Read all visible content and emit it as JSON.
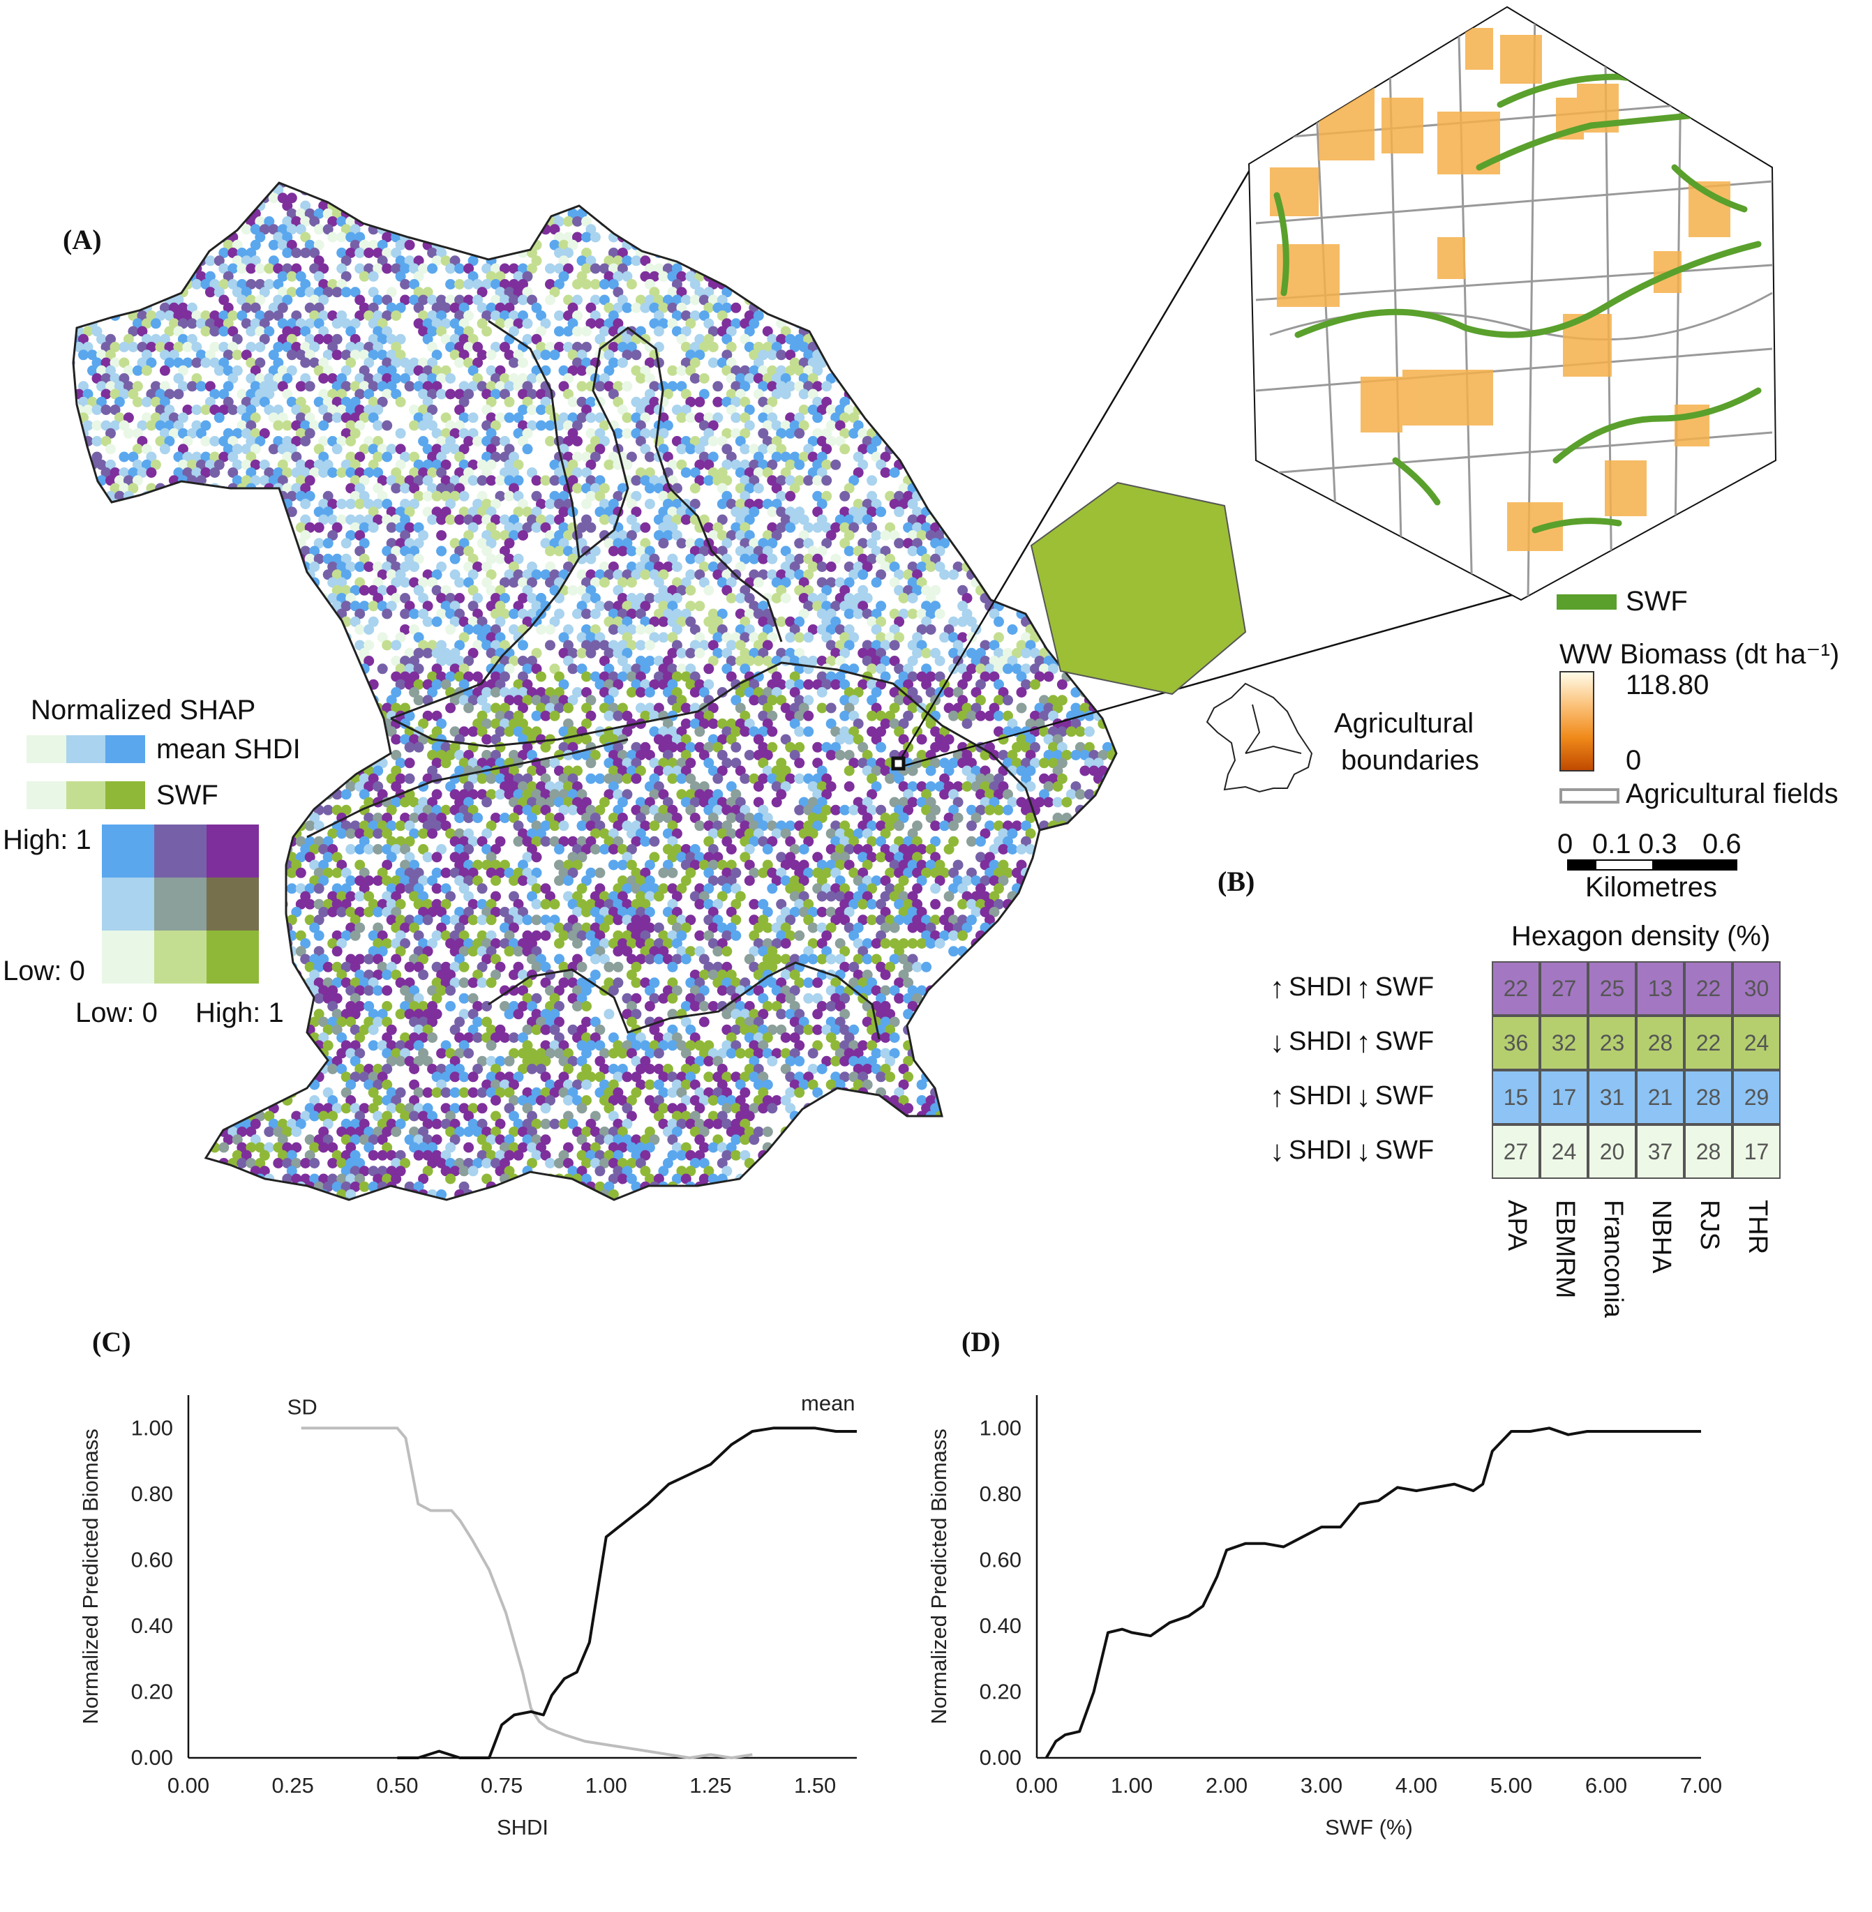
{
  "panels": {
    "a": "(A)",
    "b": "(B)",
    "c": "(C)",
    "d": "(D)"
  },
  "map_legend": {
    "title": "Normalized SHAP",
    "row1_label": "mean SHDI",
    "row2_label": "SWF",
    "row1_colors": [
      "#e9f7e6",
      "#a9d3ee",
      "#5aa7ee"
    ],
    "row2_colors": [
      "#e9f7e6",
      "#c4de91",
      "#8fb838"
    ],
    "matrix_colors": [
      [
        "#5aa7ee",
        "#7661a8",
        "#7e2f9c"
      ],
      [
        "#a9d3ee",
        "#8b9f9b",
        "#76704c"
      ],
      [
        "#e9f7e6",
        "#c4de91",
        "#8fb838"
      ]
    ],
    "y_high": "High: 1",
    "y_low": "Low: 0",
    "x_low": "Low: 0",
    "x_high": "High: 1"
  },
  "inset_legend": {
    "swf_label": "SWF",
    "swf_color": "#5aa02c",
    "biomass_title": "WW Biomass (dt ha⁻¹)",
    "biomass_max": "118.80",
    "biomass_min": "0",
    "agri_boundaries_line1": "Agricultural",
    "agri_boundaries_line2": "boundaries",
    "agri_fields": "Agricultural fields",
    "scale_ticks": [
      "0",
      "0.1",
      "0.3",
      "0.6"
    ],
    "scale_unit": "Kilometres",
    "hexagon_color": "#9cbf36"
  },
  "density_table": {
    "title": "Hexagon density (%)",
    "rows": [
      {
        "shdi_arrow": "↑",
        "swf_arrow": "↑",
        "shdi": "SHDI",
        "swf": "SWF",
        "color": "#a377c2",
        "values": [
          "22",
          "27",
          "25",
          "13",
          "22",
          "30"
        ]
      },
      {
        "shdi_arrow": "↓",
        "swf_arrow": "↑",
        "shdi": "SHDI",
        "swf": "SWF",
        "color": "#b5cf6f",
        "values": [
          "36",
          "32",
          "23",
          "28",
          "22",
          "24"
        ]
      },
      {
        "shdi_arrow": "↑",
        "swf_arrow": "↓",
        "shdi": "SHDI",
        "swf": "SWF",
        "color": "#8dc4f5",
        "values": [
          "15",
          "17",
          "31",
          "21",
          "28",
          "29"
        ]
      },
      {
        "shdi_arrow": "↓",
        "swf_arrow": "↓",
        "shdi": "SHDI",
        "swf": "SWF",
        "color": "#eef8e6",
        "values": [
          "27",
          "24",
          "20",
          "37",
          "28",
          "17"
        ]
      }
    ],
    "regions": [
      "APA",
      "EBMRM",
      "Franconia",
      "NBHA",
      "RJS",
      "THR"
    ]
  },
  "chart_data": [
    {
      "type": "line",
      "xlabel": "SHDI",
      "ylabel": "Normalized Predicted Biomass",
      "xlim": [
        0.0,
        1.6
      ],
      "ylim": [
        0.0,
        1.1
      ],
      "x_ticks": [
        "0.00",
        "0.25",
        "0.50",
        "0.75",
        "1.00",
        "1.25",
        "1.50"
      ],
      "y_ticks": [
        "0.00",
        "0.20",
        "0.40",
        "0.60",
        "0.80",
        "1.00"
      ],
      "series": [
        {
          "name": "SD",
          "color": "#bdbdbd",
          "x": [
            0.27,
            0.45,
            0.5,
            0.52,
            0.55,
            0.58,
            0.63,
            0.65,
            0.68,
            0.72,
            0.76,
            0.8,
            0.82,
            0.84,
            0.86,
            0.9,
            0.95,
            1.0,
            1.05,
            1.1,
            1.15,
            1.2,
            1.25,
            1.3,
            1.35
          ],
          "y": [
            1.0,
            1.0,
            1.0,
            0.97,
            0.77,
            0.75,
            0.75,
            0.72,
            0.66,
            0.57,
            0.44,
            0.26,
            0.15,
            0.11,
            0.09,
            0.07,
            0.05,
            0.04,
            0.03,
            0.02,
            0.01,
            0.0,
            0.01,
            0.0,
            0.01
          ]
        },
        {
          "name": "mean",
          "color": "#111111",
          "x": [
            0.5,
            0.55,
            0.6,
            0.65,
            0.7,
            0.72,
            0.75,
            0.78,
            0.82,
            0.85,
            0.87,
            0.9,
            0.93,
            0.96,
            1.0,
            1.03,
            1.06,
            1.1,
            1.15,
            1.2,
            1.25,
            1.3,
            1.35,
            1.4,
            1.45,
            1.5,
            1.55,
            1.6
          ],
          "y": [
            0.0,
            0.0,
            0.02,
            0.0,
            0.0,
            0.0,
            0.1,
            0.13,
            0.14,
            0.13,
            0.19,
            0.24,
            0.26,
            0.35,
            0.67,
            0.7,
            0.73,
            0.77,
            0.83,
            0.86,
            0.89,
            0.95,
            0.99,
            1.0,
            1.0,
            1.0,
            0.99,
            0.99
          ]
        }
      ],
      "annotations": [
        "SD",
        "mean"
      ]
    },
    {
      "type": "line",
      "xlabel": "SWF (%)",
      "ylabel": "Normalized Predicted Biomass",
      "xlim": [
        0.0,
        7.0
      ],
      "ylim": [
        0.0,
        1.1
      ],
      "x_ticks": [
        "0.00",
        "1.00",
        "2.00",
        "3.00",
        "4.00",
        "5.00",
        "6.00",
        "7.00"
      ],
      "y_ticks": [
        "0.00",
        "0.20",
        "0.40",
        "0.60",
        "0.80",
        "1.00"
      ],
      "series": [
        {
          "name": "",
          "color": "#111111",
          "x": [
            0.1,
            0.2,
            0.3,
            0.45,
            0.6,
            0.75,
            0.9,
            1.0,
            1.2,
            1.4,
            1.6,
            1.75,
            1.9,
            2.0,
            2.2,
            2.4,
            2.6,
            2.8,
            3.0,
            3.2,
            3.4,
            3.6,
            3.8,
            4.0,
            4.2,
            4.4,
            4.6,
            4.7,
            4.8,
            5.0,
            5.2,
            5.4,
            5.6,
            5.8,
            6.0,
            7.0
          ],
          "y": [
            0.0,
            0.05,
            0.07,
            0.08,
            0.2,
            0.38,
            0.39,
            0.38,
            0.37,
            0.41,
            0.43,
            0.46,
            0.55,
            0.63,
            0.65,
            0.65,
            0.64,
            0.67,
            0.7,
            0.7,
            0.77,
            0.78,
            0.82,
            0.81,
            0.82,
            0.83,
            0.81,
            0.83,
            0.93,
            0.99,
            0.99,
            1.0,
            0.98,
            0.99,
            0.99,
            0.99
          ]
        }
      ]
    }
  ]
}
